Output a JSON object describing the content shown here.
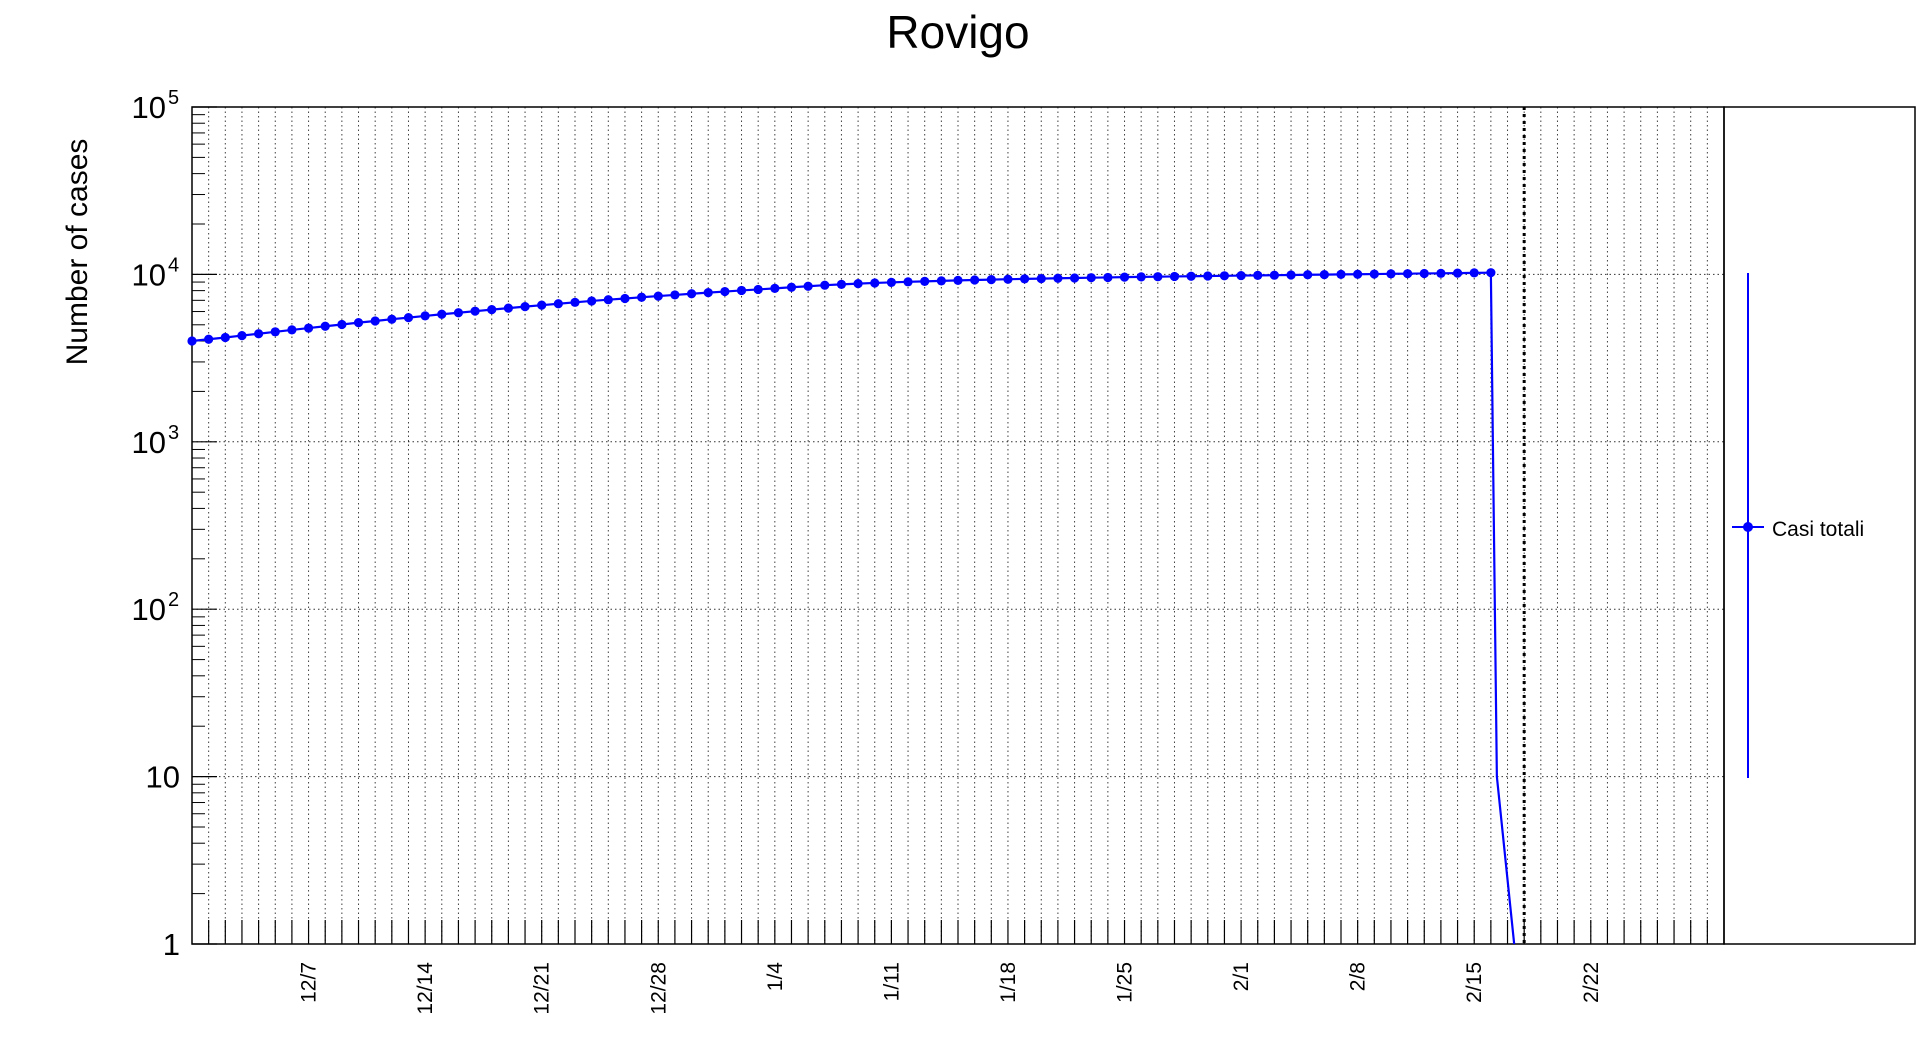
{
  "chart_data": {
    "type": "line",
    "title": "Rovigo",
    "ylabel": "Number of cases",
    "xlabel": "",
    "y_scale": "log",
    "ylim": [
      1,
      100000
    ],
    "y_ticks": [
      {
        "value": 1,
        "label": "1",
        "sup": ""
      },
      {
        "value": 10,
        "label": "10",
        "sup": ""
      },
      {
        "value": 100,
        "label": "10",
        "sup": "2"
      },
      {
        "value": 1000,
        "label": "10",
        "sup": "3"
      },
      {
        "value": 10000,
        "label": "10",
        "sup": "4"
      },
      {
        "value": 100000,
        "label": "10",
        "sup": "5"
      }
    ],
    "x_range": [
      "2020-11-30",
      "2021-03-02"
    ],
    "x_tick_labels": [
      {
        "date": "2020-12-07",
        "label": "12/7"
      },
      {
        "date": "2020-12-14",
        "label": "12/14"
      },
      {
        "date": "2020-12-21",
        "label": "12/21"
      },
      {
        "date": "2020-12-28",
        "label": "12/28"
      },
      {
        "date": "2021-01-04",
        "label": "1/4"
      },
      {
        "date": "2021-01-11",
        "label": "1/11"
      },
      {
        "date": "2021-01-18",
        "label": "1/18"
      },
      {
        "date": "2021-01-25",
        "label": "1/25"
      },
      {
        "date": "2021-02-01",
        "label": "2/1"
      },
      {
        "date": "2021-02-08",
        "label": "2/8"
      },
      {
        "date": "2021-02-15",
        "label": "2/15"
      },
      {
        "date": "2021-02-22",
        "label": "2/22"
      }
    ],
    "grid": true,
    "legend_position": "right",
    "marker_line_date": "2021-02-18",
    "series": [
      {
        "name": "Casi totali",
        "color": "#0000ff",
        "start_date": "2020-11-30",
        "drop_after_last": true,
        "values": [
          4000,
          4100,
          4200,
          4310,
          4420,
          4540,
          4660,
          4780,
          4900,
          5020,
          5150,
          5270,
          5400,
          5520,
          5650,
          5780,
          5900,
          6030,
          6160,
          6290,
          6420,
          6550,
          6680,
          6810,
          6940,
          7060,
          7180,
          7300,
          7420,
          7540,
          7660,
          7780,
          7900,
          8020,
          8130,
          8250,
          8380,
          8500,
          8620,
          8720,
          8810,
          8890,
          8960,
          9030,
          9090,
          9150,
          9210,
          9260,
          9310,
          9360,
          9400,
          9440,
          9480,
          9520,
          9560,
          9590,
          9630,
          9660,
          9690,
          9720,
          9750,
          9780,
          9810,
          9840,
          9870,
          9890,
          9920,
          9950,
          9970,
          10000,
          10020,
          10050,
          10080,
          10100,
          10130,
          10150,
          10180,
          10210,
          10240
        ]
      }
    ]
  }
}
